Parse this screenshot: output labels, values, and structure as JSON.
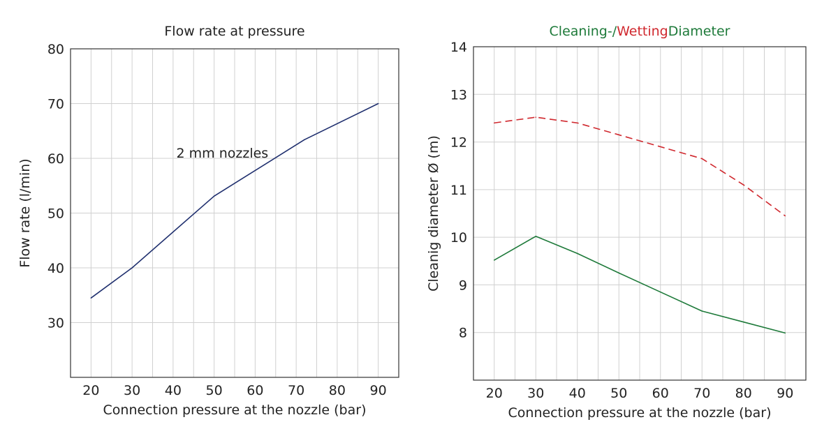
{
  "chart_data": [
    {
      "type": "line",
      "title": "Flow rate at pressure",
      "xlabel": "Connection pressure at the nozzle (bar)",
      "ylabel": "Flow rate (l/min)",
      "x_ticks": [
        20,
        30,
        40,
        50,
        60,
        70,
        80,
        90
      ],
      "y_ticks": [
        30,
        40,
        50,
        60,
        70,
        80
      ],
      "xlim": [
        15,
        95
      ],
      "ylim": [
        20,
        80
      ],
      "grid": true,
      "series": [
        {
          "color": "#1f2f6e",
          "style": "solid",
          "x": [
            20,
            30,
            50,
            72,
            90
          ],
          "y": [
            34.5,
            40,
            53.1,
            63.4,
            70
          ]
        }
      ],
      "annotations": [
        {
          "text": "2 mm nozzles",
          "x": 52,
          "y": 61
        }
      ]
    },
    {
      "type": "line",
      "title_parts": [
        {
          "text": "Cleaning-/",
          "color": "#1e7a3a"
        },
        {
          "text": "Wetting",
          "color": "#d0282e"
        },
        {
          "text": "Diameter",
          "color": "#1e7a3a"
        }
      ],
      "xlabel": "Connection pressure at the nozzle (bar)",
      "ylabel": "Cleanig diameter Ø (m)",
      "x_ticks": [
        20,
        30,
        40,
        50,
        60,
        70,
        80,
        90
      ],
      "y_ticks": [
        8,
        9,
        10,
        11,
        12,
        13,
        14
      ],
      "xlim": [
        15,
        95
      ],
      "ylim": [
        7,
        14
      ],
      "grid": true,
      "series": [
        {
          "color": "#d0282e",
          "style": "dashed",
          "x": [
            20,
            30,
            40,
            50,
            60,
            70,
            80,
            90
          ],
          "y": [
            12.4,
            12.52,
            12.4,
            12.15,
            11.9,
            11.65,
            11.1,
            10.45
          ]
        },
        {
          "color": "#1e7a3a",
          "style": "solid",
          "x": [
            20,
            30,
            40,
            50,
            60,
            70,
            80,
            90
          ],
          "y": [
            9.52,
            10.02,
            9.66,
            9.25,
            8.85,
            8.45,
            8.22,
            7.99
          ]
        }
      ]
    }
  ]
}
